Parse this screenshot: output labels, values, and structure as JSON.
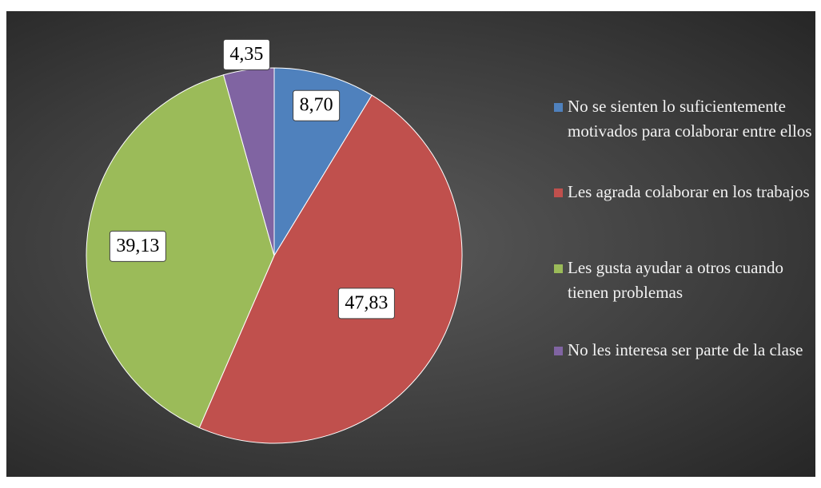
{
  "chart_data": {
    "type": "pie",
    "categories": [
      "No se sienten lo suficientemente motivados para colaborar entre ellos",
      "Les agrada colaborar en los trabajos",
      "Les gusta ayudar a otros cuando tienen problemas",
      "No les interesa ser parte de la clase"
    ],
    "values": [
      8.7,
      47.83,
      39.13,
      4.35
    ],
    "value_labels": [
      "8,70",
      "47,83",
      "39,13",
      "4,35"
    ],
    "colors": [
      "#4f81bd",
      "#c0504d",
      "#9bbb59",
      "#8064a2"
    ],
    "legend": "right"
  }
}
